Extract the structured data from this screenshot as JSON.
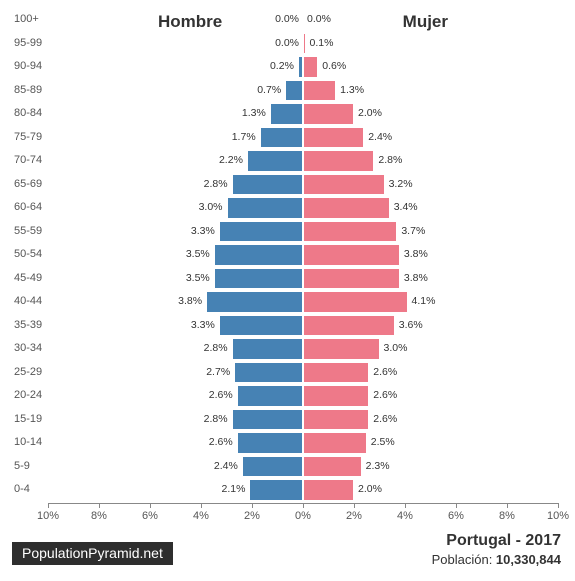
{
  "chart": {
    "type": "population-pyramid",
    "background_color": "#ffffff",
    "male_color": "#4682b4",
    "female_color": "#ee7989",
    "bar_border_color": "#ffffff",
    "male_heading": "Hombre",
    "female_heading": "Mujer",
    "heading_fontsize": 17,
    "heading_fontweight": 700,
    "heading_color": "#333333",
    "value_label_fontsize": 10.5,
    "value_label_color": "#333333",
    "age_label_fontsize": 11,
    "age_label_color": "#555555",
    "x_axis": {
      "max_pct": 10,
      "tick_step": 2,
      "ticks_male": [
        "10%",
        "8%",
        "6%",
        "4%",
        "2%"
      ],
      "tick_center": "0%",
      "ticks_female": [
        "2%",
        "4%",
        "6%",
        "8%",
        "10%"
      ],
      "axis_color": "#888888",
      "tick_label_fontsize": 11,
      "tick_label_color": "#555555"
    },
    "cohorts": [
      {
        "age": "100+",
        "male_pct": 0.0,
        "female_pct": 0.0,
        "male_label": "0.0%",
        "female_label": "0.0%"
      },
      {
        "age": "95-99",
        "male_pct": 0.0,
        "female_pct": 0.1,
        "male_label": "0.0%",
        "female_label": "0.1%"
      },
      {
        "age": "90-94",
        "male_pct": 0.2,
        "female_pct": 0.6,
        "male_label": "0.2%",
        "female_label": "0.6%"
      },
      {
        "age": "85-89",
        "male_pct": 0.7,
        "female_pct": 1.3,
        "male_label": "0.7%",
        "female_label": "1.3%"
      },
      {
        "age": "80-84",
        "male_pct": 1.3,
        "female_pct": 2.0,
        "male_label": "1.3%",
        "female_label": "2.0%"
      },
      {
        "age": "75-79",
        "male_pct": 1.7,
        "female_pct": 2.4,
        "male_label": "1.7%",
        "female_label": "2.4%"
      },
      {
        "age": "70-74",
        "male_pct": 2.2,
        "female_pct": 2.8,
        "male_label": "2.2%",
        "female_label": "2.8%"
      },
      {
        "age": "65-69",
        "male_pct": 2.8,
        "female_pct": 3.2,
        "male_label": "2.8%",
        "female_label": "3.2%"
      },
      {
        "age": "60-64",
        "male_pct": 3.0,
        "female_pct": 3.4,
        "male_label": "3.0%",
        "female_label": "3.4%"
      },
      {
        "age": "55-59",
        "male_pct": 3.3,
        "female_pct": 3.7,
        "male_label": "3.3%",
        "female_label": "3.7%"
      },
      {
        "age": "50-54",
        "male_pct": 3.5,
        "female_pct": 3.8,
        "male_label": "3.5%",
        "female_label": "3.8%"
      },
      {
        "age": "45-49",
        "male_pct": 3.5,
        "female_pct": 3.8,
        "male_label": "3.5%",
        "female_label": "3.8%"
      },
      {
        "age": "40-44",
        "male_pct": 3.8,
        "female_pct": 4.1,
        "male_label": "3.8%",
        "female_label": "4.1%"
      },
      {
        "age": "35-39",
        "male_pct": 3.3,
        "female_pct": 3.6,
        "male_label": "3.3%",
        "female_label": "3.6%"
      },
      {
        "age": "30-34",
        "male_pct": 2.8,
        "female_pct": 3.0,
        "male_label": "2.8%",
        "female_label": "3.0%"
      },
      {
        "age": "25-29",
        "male_pct": 2.7,
        "female_pct": 2.6,
        "male_label": "2.7%",
        "female_label": "2.6%"
      },
      {
        "age": "20-24",
        "male_pct": 2.6,
        "female_pct": 2.6,
        "male_label": "2.6%",
        "female_label": "2.6%"
      },
      {
        "age": "15-19",
        "male_pct": 2.8,
        "female_pct": 2.6,
        "male_label": "2.8%",
        "female_label": "2.6%"
      },
      {
        "age": "10-14",
        "male_pct": 2.6,
        "female_pct": 2.5,
        "male_label": "2.6%",
        "female_label": "2.5%"
      },
      {
        "age": "5-9",
        "male_pct": 2.4,
        "female_pct": 2.3,
        "male_label": "2.4%",
        "female_label": "2.3%"
      },
      {
        "age": "0-4",
        "male_pct": 2.1,
        "female_pct": 2.0,
        "male_label": "2.1%",
        "female_label": "2.0%"
      }
    ]
  },
  "footer": {
    "badge_text": "PopulationPyramid.net",
    "badge_bg": "#2e2e2e",
    "badge_fg": "#ffffff",
    "country_year": "Portugal - 2017",
    "population_label": "Población: ",
    "population_value": "10,330,844"
  }
}
